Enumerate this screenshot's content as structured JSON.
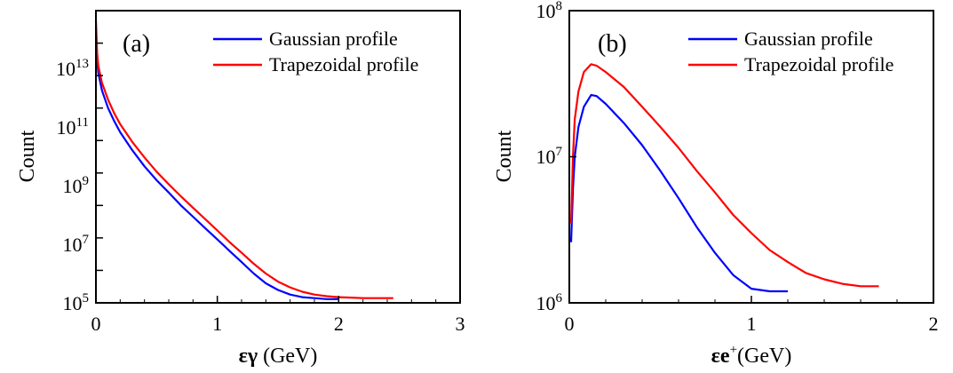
{
  "chart_data": [
    {
      "type": "line",
      "panel_label": "(a)",
      "xlabel_symbol": "εγ",
      "xlabel_unit": " (GeV)",
      "ylabel": "Count",
      "y_scale": "log",
      "xlim": [
        0,
        3
      ],
      "ylim": [
        100000,
        100000000000000
      ],
      "x_ticks": [
        {
          "value": 0,
          "label": "0"
        },
        {
          "value": 1,
          "label": "1"
        },
        {
          "value": 2,
          "label": "2"
        },
        {
          "value": 3,
          "label": "3"
        }
      ],
      "y_ticks": [
        {
          "value": 100000,
          "base": "10",
          "exp": "5"
        },
        {
          "value": 10000000,
          "base": "10",
          "exp": "7"
        },
        {
          "value": 1000000000,
          "base": "10",
          "exp": "9"
        },
        {
          "value": 100000000000,
          "base": "10",
          "exp": "11"
        },
        {
          "value": 10000000000000,
          "base": "10",
          "exp": "13"
        }
      ],
      "legend_position": "top-right",
      "series": [
        {
          "name": "Gaussian profile",
          "color": "#0000ff",
          "points": [
            [
              0.0,
              30000000000000.0
            ],
            [
              0.01,
              3000000000000.0
            ],
            [
              0.02,
              1200000000000.0
            ],
            [
              0.05,
              350000000000.0
            ],
            [
              0.1,
              100000000000.0
            ],
            [
              0.15,
              40000000000.0
            ],
            [
              0.2,
              18000000000.0
            ],
            [
              0.3,
              5000000000.0
            ],
            [
              0.4,
              1600000000.0
            ],
            [
              0.5,
              600000000.0
            ],
            [
              0.6,
              250000000.0
            ],
            [
              0.7,
              100000000.0
            ],
            [
              0.8,
              45000000.0
            ],
            [
              0.9,
              20000000.0
            ],
            [
              1.0,
              9000000.0
            ],
            [
              1.1,
              4000000.0
            ],
            [
              1.2,
              1800000.0
            ],
            [
              1.3,
              800000.0
            ],
            [
              1.4,
              400000.0
            ],
            [
              1.5,
              250000.0
            ],
            [
              1.6,
              180000.0
            ],
            [
              1.7,
              150000.0
            ],
            [
              1.8,
              140000.0
            ],
            [
              1.9,
              130000.0
            ],
            [
              2.0,
              130000.0
            ]
          ]
        },
        {
          "name": "Trapezoidal profile",
          "color": "#ff0000",
          "points": [
            [
              0.0,
              50000000000000.0
            ],
            [
              0.01,
              5000000000000.0
            ],
            [
              0.02,
              2000000000000.0
            ],
            [
              0.05,
              600000000000.0
            ],
            [
              0.1,
              180000000000.0
            ],
            [
              0.15,
              70000000000.0
            ],
            [
              0.2,
              32000000000.0
            ],
            [
              0.3,
              9000000000.0
            ],
            [
              0.4,
              3000000000.0
            ],
            [
              0.5,
              1100000000.0
            ],
            [
              0.6,
              450000000.0
            ],
            [
              0.7,
              190000000.0
            ],
            [
              0.8,
              85000000.0
            ],
            [
              0.9,
              38000000.0
            ],
            [
              1.0,
              17000000.0
            ],
            [
              1.1,
              7500000.0
            ],
            [
              1.2,
              3500000.0
            ],
            [
              1.3,
              1600000.0
            ],
            [
              1.4,
              800000.0
            ],
            [
              1.5,
              450000.0
            ],
            [
              1.6,
              300000.0
            ],
            [
              1.7,
              220000.0
            ],
            [
              1.8,
              180000.0
            ],
            [
              1.9,
              160000.0
            ],
            [
              2.0,
              150000.0
            ],
            [
              2.1,
              145000.0
            ],
            [
              2.2,
              140000.0
            ],
            [
              2.3,
              140000.0
            ],
            [
              2.45,
              140000.0
            ]
          ]
        }
      ]
    },
    {
      "type": "line",
      "panel_label": "(b)",
      "xlabel_symbol": "εe",
      "xlabel_sup": "+",
      "xlabel_unit": "(GeV)",
      "ylabel": "Count",
      "y_scale": "log",
      "xlim": [
        0,
        2
      ],
      "ylim": [
        1000000,
        100000000
      ],
      "x_ticks": [
        {
          "value": 0,
          "label": "0"
        },
        {
          "value": 1,
          "label": "1"
        },
        {
          "value": 2,
          "label": "2"
        }
      ],
      "y_ticks": [
        {
          "value": 1000000,
          "base": "10",
          "exp": "6"
        },
        {
          "value": 10000000,
          "base": "10",
          "exp": "7"
        },
        {
          "value": 100000000,
          "base": "10",
          "exp": "8"
        }
      ],
      "legend_position": "top-right",
      "series": [
        {
          "name": "Gaussian profile",
          "color": "#0000ff",
          "points": [
            [
              0.01,
              2600000.0
            ],
            [
              0.02,
              6000000.0
            ],
            [
              0.03,
              10000000.0
            ],
            [
              0.05,
              16000000.0
            ],
            [
              0.08,
              22000000.0
            ],
            [
              0.12,
              26500000.0
            ],
            [
              0.15,
              26000000.0
            ],
            [
              0.2,
              23000000.0
            ],
            [
              0.3,
              17000000.0
            ],
            [
              0.4,
              12000000.0
            ],
            [
              0.5,
              8000000.0
            ],
            [
              0.6,
              5200000.0
            ],
            [
              0.7,
              3300000.0
            ],
            [
              0.8,
              2200000.0
            ],
            [
              0.9,
              1550000.0
            ],
            [
              1.0,
              1250000.0
            ],
            [
              1.1,
              1200000.0
            ],
            [
              1.2,
              1200000.0
            ]
          ]
        },
        {
          "name": "Trapezoidal profile",
          "color": "#ff0000",
          "points": [
            [
              0.01,
              3500000.0
            ],
            [
              0.02,
              10000000.0
            ],
            [
              0.03,
              18000000.0
            ],
            [
              0.05,
              28000000.0
            ],
            [
              0.08,
              38000000.0
            ],
            [
              0.12,
              43000000.0
            ],
            [
              0.15,
              42000000.0
            ],
            [
              0.2,
              38000000.0
            ],
            [
              0.3,
              30000000.0
            ],
            [
              0.4,
              22000000.0
            ],
            [
              0.5,
              16000000.0
            ],
            [
              0.6,
              11500000.0
            ],
            [
              0.7,
              8000000.0
            ],
            [
              0.8,
              5700000.0
            ],
            [
              0.9,
              4000000.0
            ],
            [
              1.0,
              3000000.0
            ],
            [
              1.1,
              2300000.0
            ],
            [
              1.2,
              1900000.0
            ],
            [
              1.3,
              1600000.0
            ],
            [
              1.4,
              1450000.0
            ],
            [
              1.5,
              1350000.0
            ],
            [
              1.6,
              1300000.0
            ],
            [
              1.7,
              1300000.0
            ]
          ]
        }
      ]
    }
  ]
}
